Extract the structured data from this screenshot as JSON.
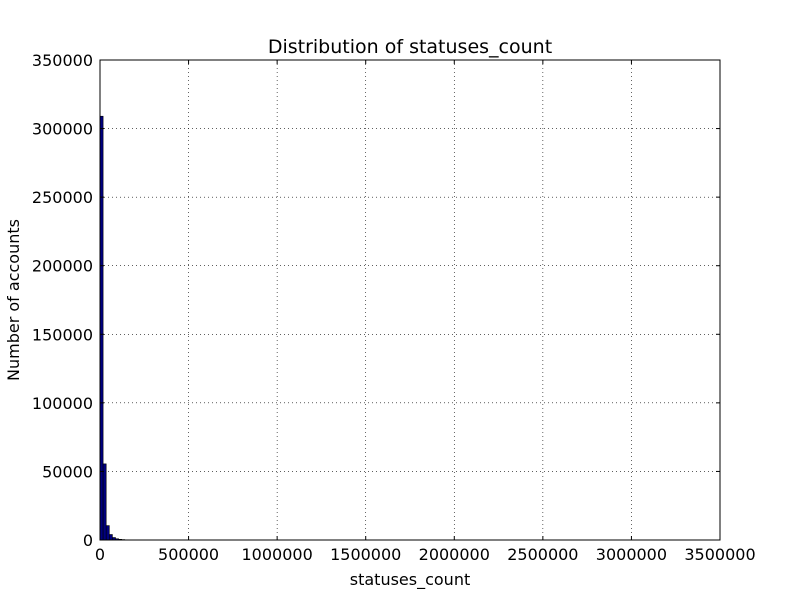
{
  "chart_data": {
    "type": "bar",
    "title": "Distribution of statuses_count",
    "xlabel": "statuses_count",
    "ylabel": "Number of accounts",
    "xlim": [
      0,
      3500000
    ],
    "ylim": [
      0,
      350000
    ],
    "grid": true,
    "x_ticks": [
      0,
      500000,
      1000000,
      1500000,
      2000000,
      2500000,
      3000000,
      3500000
    ],
    "x_tick_labels": [
      "0",
      "500000",
      "1000000",
      "1500000",
      "2000000",
      "2500000",
      "3000000",
      "3500000"
    ],
    "y_ticks": [
      0,
      50000,
      100000,
      150000,
      200000,
      250000,
      300000,
      350000
    ],
    "y_tick_labels": [
      "0",
      "50000",
      "100000",
      "150000",
      "200000",
      "250000",
      "300000",
      "350000"
    ],
    "bin_width": 17500,
    "bins": [
      {
        "x0": 0,
        "x1": 17500,
        "value": 309000
      },
      {
        "x0": 17500,
        "x1": 35000,
        "value": 55500
      },
      {
        "x0": 35000,
        "x1": 52500,
        "value": 10500
      },
      {
        "x0": 52500,
        "x1": 70000,
        "value": 4000
      },
      {
        "x0": 70000,
        "x1": 87500,
        "value": 1800
      },
      {
        "x0": 87500,
        "x1": 105000,
        "value": 900
      },
      {
        "x0": 105000,
        "x1": 122500,
        "value": 500
      },
      {
        "x0": 122500,
        "x1": 140000,
        "value": 300
      },
      {
        "x0": 140000,
        "x1": 157500,
        "value": 150
      },
      {
        "x0": 157500,
        "x1": 175000,
        "value": 100
      }
    ],
    "bar_color": "#00007f"
  }
}
